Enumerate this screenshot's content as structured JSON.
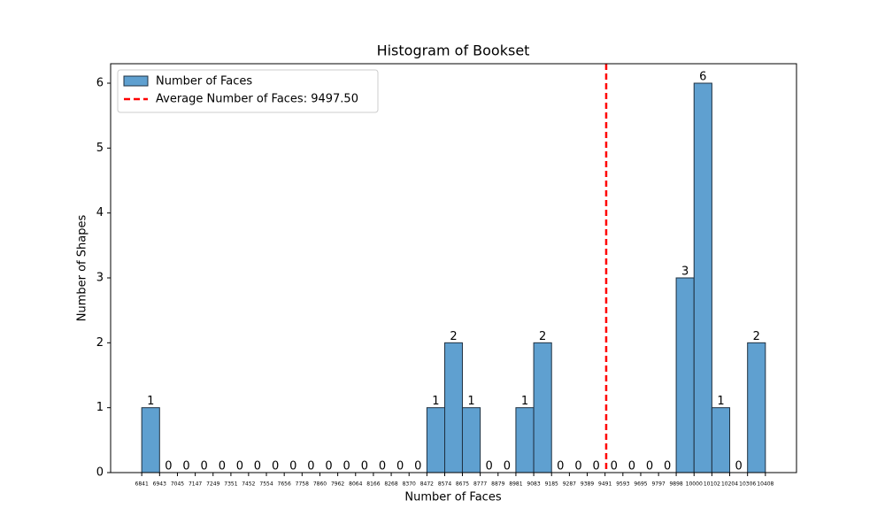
{
  "chart_data": {
    "type": "histogram",
    "title": "Histogram of Bookset",
    "x_label": "Number of Faces",
    "y_label": "Number of Shapes",
    "bins": [
      6841,
      6943,
      7045,
      7147,
      7249,
      7351,
      7452,
      7554,
      7656,
      7758,
      7860,
      7962,
      8064,
      8166,
      8268,
      8370,
      8472,
      8574,
      8675,
      8777,
      8879,
      8981,
      9083,
      9185,
      9287,
      9389,
      9491,
      9593,
      9695,
      9797,
      9898,
      10000,
      10102,
      10204,
      10306,
      10408
    ],
    "series": [
      {
        "name": "Number of Faces",
        "color": "#5fa0d0",
        "values": [
          1,
          0,
          0,
          0,
          0,
          0,
          0,
          0,
          0,
          0,
          0,
          0,
          0,
          0,
          0,
          0,
          1,
          2,
          1,
          0,
          0,
          1,
          2,
          0,
          0,
          0,
          0,
          0,
          0,
          0,
          3,
          6,
          1,
          0,
          2
        ]
      }
    ],
    "average_line": {
      "name": "Average Number of Faces: 9497.50",
      "value": 9497.5,
      "color": "#ff0000"
    },
    "xlim": [
      6663,
      10586
    ],
    "xticks": [
      6841,
      6943,
      7045,
      7147,
      7249,
      7351,
      7452,
      7554,
      7656,
      7758,
      7860,
      7962,
      8064,
      8166,
      8268,
      8370,
      8472,
      8574,
      8675,
      8777,
      8879,
      8981,
      9083,
      9185,
      9287,
      9389,
      9491,
      9593,
      9695,
      9797,
      9898,
      10000,
      10102,
      10204,
      10306,
      10408
    ],
    "ylim": [
      0,
      6.3
    ],
    "yticks": [
      0,
      1,
      2,
      3,
      4,
      5,
      6
    ],
    "legend": "upper left"
  }
}
